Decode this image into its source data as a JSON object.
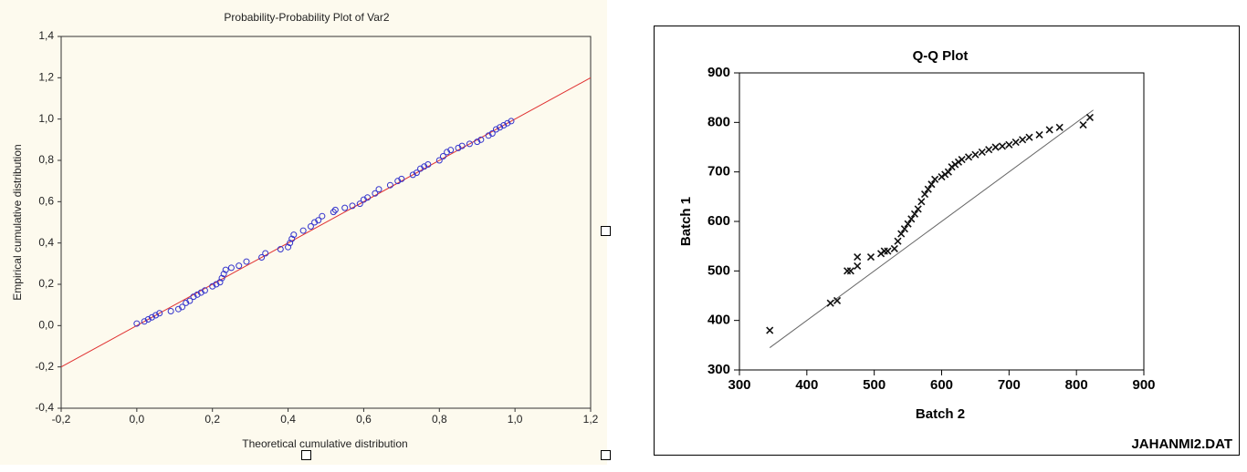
{
  "chart_data": [
    {
      "type": "scatter",
      "title": "Probability-Probability Plot of Var2",
      "x_label": "Theoretical cumulative distribution",
      "y_label": "Empirical cumulative distribution",
      "marker": "circle",
      "color": "#3333cc",
      "line_color": "#e03030",
      "x": [
        0.0,
        0.02,
        0.03,
        0.04,
        0.05,
        0.06,
        0.09,
        0.11,
        0.12,
        0.13,
        0.14,
        0.15,
        0.16,
        0.17,
        0.18,
        0.2,
        0.21,
        0.22,
        0.225,
        0.23,
        0.235,
        0.25,
        0.27,
        0.29,
        0.33,
        0.34,
        0.38,
        0.4,
        0.405,
        0.41,
        0.415,
        0.44,
        0.46,
        0.47,
        0.48,
        0.49,
        0.52,
        0.525,
        0.55,
        0.57,
        0.59,
        0.6,
        0.61,
        0.63,
        0.64,
        0.67,
        0.69,
        0.7,
        0.73,
        0.74,
        0.75,
        0.76,
        0.77,
        0.8,
        0.81,
        0.82,
        0.83,
        0.85,
        0.86,
        0.88,
        0.9,
        0.91,
        0.93,
        0.94,
        0.95,
        0.96,
        0.97,
        0.98,
        0.99
      ],
      "values": [
        0.01,
        0.02,
        0.03,
        0.04,
        0.05,
        0.06,
        0.07,
        0.08,
        0.09,
        0.11,
        0.12,
        0.14,
        0.15,
        0.16,
        0.17,
        0.19,
        0.2,
        0.21,
        0.23,
        0.25,
        0.27,
        0.28,
        0.29,
        0.31,
        0.33,
        0.35,
        0.37,
        0.38,
        0.4,
        0.42,
        0.44,
        0.46,
        0.48,
        0.5,
        0.51,
        0.53,
        0.55,
        0.56,
        0.57,
        0.58,
        0.59,
        0.61,
        0.62,
        0.64,
        0.66,
        0.68,
        0.7,
        0.71,
        0.73,
        0.74,
        0.76,
        0.77,
        0.78,
        0.8,
        0.82,
        0.84,
        0.85,
        0.86,
        0.87,
        0.88,
        0.89,
        0.9,
        0.92,
        0.93,
        0.95,
        0.96,
        0.97,
        0.98,
        0.99
      ],
      "fit_line": {
        "x": [
          -0.2,
          1.2
        ],
        "y": [
          -0.2,
          1.2
        ]
      },
      "xlim": [
        -0.2,
        1.2
      ],
      "xticks": [
        {
          "value": -0.2,
          "label": "-0,2"
        },
        {
          "value": 0,
          "label": "0,0"
        },
        {
          "value": 0.2,
          "label": "0,2"
        },
        {
          "value": 0.4,
          "label": "0,4"
        },
        {
          "value": 0.6,
          "label": "0,6"
        },
        {
          "value": 0.8,
          "label": "0,8"
        },
        {
          "value": 1,
          "label": "1,0"
        },
        {
          "value": 1.2,
          "label": "1,2"
        }
      ],
      "ylim": [
        -0.4,
        1.4
      ],
      "yticks": [
        {
          "value": -0.4,
          "label": "-0,4"
        },
        {
          "value": -0.2,
          "label": "-0,2"
        },
        {
          "value": 0,
          "label": "0,0"
        },
        {
          "value": 0.2,
          "label": "0,2"
        },
        {
          "value": 0.4,
          "label": "0,4"
        },
        {
          "value": 0.6,
          "label": "0,6"
        },
        {
          "value": 0.8,
          "label": "0,8"
        },
        {
          "value": 1,
          "label": "1,0"
        },
        {
          "value": 1.2,
          "label": "1,2"
        },
        {
          "value": 1.4,
          "label": "1,4"
        }
      ]
    },
    {
      "type": "scatter",
      "title": "Q-Q Plot",
      "x_label": "Batch 2",
      "y_label": "Batch 1",
      "annotation": "JAHANMI2.DAT",
      "marker": "x",
      "color": "#111111",
      "line_color": "#666666",
      "x": [
        345,
        435,
        445,
        460,
        465,
        475,
        475,
        495,
        510,
        515,
        520,
        530,
        535,
        540,
        545,
        550,
        555,
        560,
        565,
        570,
        575,
        580,
        585,
        590,
        600,
        605,
        610,
        615,
        620,
        625,
        630,
        640,
        650,
        660,
        670,
        680,
        690,
        700,
        710,
        720,
        730,
        745,
        760,
        775,
        810,
        820
      ],
      "values": [
        380,
        435,
        440,
        500,
        500,
        510,
        528,
        528,
        535,
        540,
        540,
        545,
        560,
        575,
        585,
        595,
        605,
        615,
        625,
        640,
        655,
        665,
        675,
        685,
        690,
        695,
        700,
        710,
        715,
        720,
        725,
        730,
        735,
        740,
        745,
        750,
        752,
        755,
        760,
        765,
        770,
        775,
        785,
        790,
        795,
        810
      ],
      "fit_line": {
        "x": [
          345,
          825
        ],
        "y": [
          345,
          825
        ]
      },
      "xlim": [
        300,
        900
      ],
      "xticks": [
        300,
        400,
        500,
        600,
        700,
        800,
        900
      ],
      "ylim": [
        300,
        900
      ],
      "yticks": [
        300,
        400,
        500,
        600,
        700,
        800,
        900
      ]
    }
  ]
}
